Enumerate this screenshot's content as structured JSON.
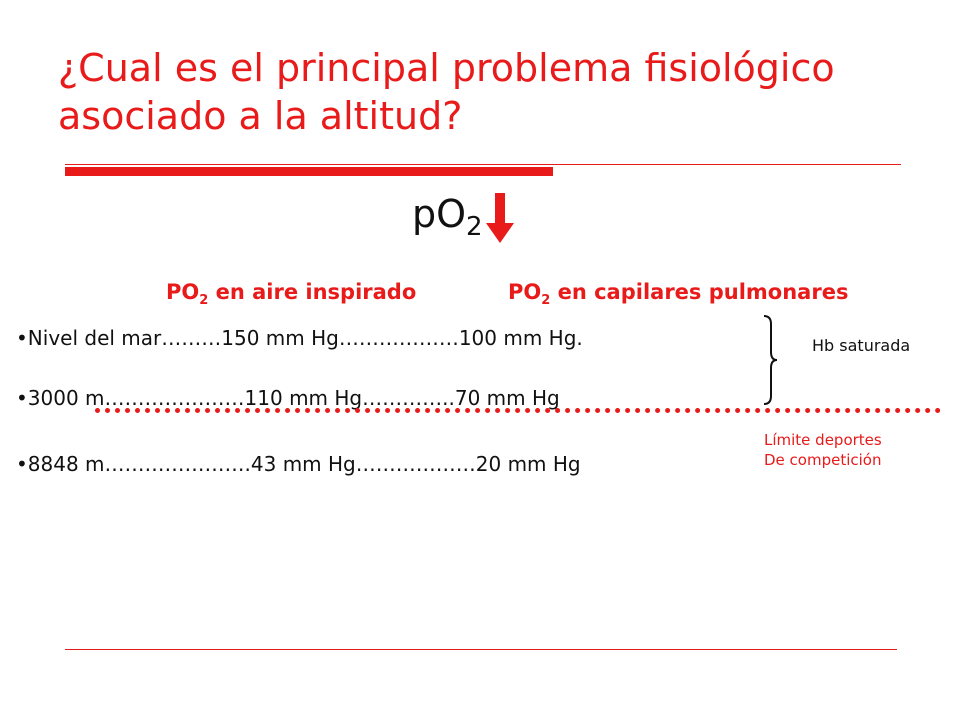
{
  "slide": {
    "title": "¿Cual es el principal problema fisiológico asociado a la altitud?",
    "po2_main": {
      "base": "pO",
      "sub": "2"
    },
    "column_headers": {
      "inspired": {
        "prefix": "PO",
        "sub": "2",
        "rest": " en aire inspirado"
      },
      "capillary": {
        "prefix": "PO",
        "sub": "2",
        "rest": " en capilares pulmonares"
      }
    },
    "rows": [
      "•Nivel del mar………150 mm Hg………………100 mm Hg.",
      "•3000 m…………………110 mm Hg…………..70 mm Hg",
      "•8848 m………………….43 mm Hg………………20 mm Hg"
    ],
    "notes": {
      "hb": "Hb saturada",
      "limit_line1": "Límite deportes",
      "limit_line2": "De competición"
    }
  },
  "colors": {
    "accent": "#e81a1a",
    "text": "#111111"
  },
  "icons": {
    "arrow": "down-arrow-icon",
    "brace": "right-brace-icon"
  }
}
